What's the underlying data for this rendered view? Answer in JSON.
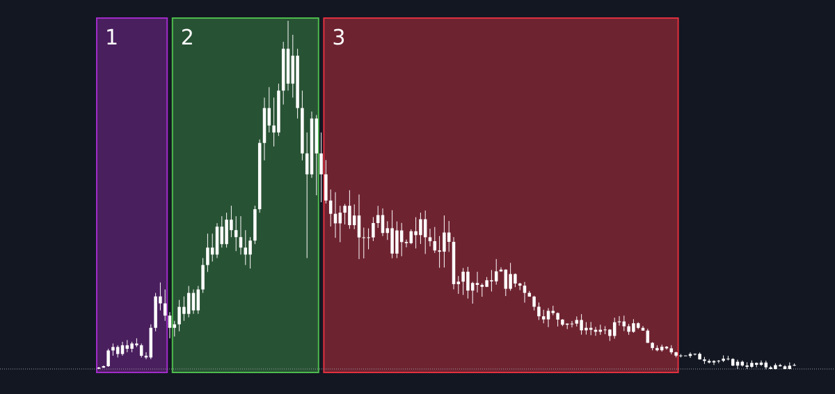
{
  "chart_data": {
    "type": "candlestick",
    "colors": {
      "background": "#131722",
      "candle": "#ffffff",
      "baseline": "#9aa0a6"
    },
    "zones": [
      {
        "label": "1",
        "x_range": [
          0,
          14
        ],
        "fill": "#4a1f5e",
        "stroke": "#a22bc9"
      },
      {
        "label": "2",
        "x_range": [
          16,
          46
        ],
        "fill": "#285234",
        "stroke": "#4dbb4d"
      },
      {
        "label": "3",
        "x_range": [
          48,
          122
        ],
        "fill": "#6e2331",
        "stroke": "#e0303f"
      }
    ],
    "ylim": [
      0,
      100
    ],
    "x_count": 148,
    "series": [
      {
        "values": [
          [
            0.3,
            0.8,
            0.2,
            0.6
          ],
          [
            0.6,
            1.2,
            0.5,
            1.0
          ],
          [
            1.0,
            6.0,
            0.8,
            5.5
          ],
          [
            5.5,
            7.5,
            4.0,
            6.5
          ],
          [
            6.5,
            7.0,
            3.5,
            4.5
          ],
          [
            4.5,
            8.0,
            4.0,
            7.0
          ],
          [
            7.0,
            8.5,
            5.0,
            6.0
          ],
          [
            6.0,
            8.0,
            5.0,
            7.5
          ],
          [
            7.5,
            9.0,
            6.5,
            7.0
          ],
          [
            7.0,
            7.5,
            3.5,
            4.0
          ],
          [
            4.0,
            5.0,
            3.0,
            3.5
          ],
          [
            3.5,
            13.0,
            3.0,
            12.0
          ],
          [
            12.0,
            22.0,
            11.0,
            21.0
          ],
          [
            21.0,
            25.0,
            17.0,
            19.0
          ],
          [
            19.0,
            23.0,
            14.0,
            15.5
          ],
          [
            15.5,
            16.5,
            9.0,
            12.0
          ],
          [
            12.0,
            14.0,
            9.5,
            13.0
          ],
          [
            13.0,
            20.0,
            11.0,
            18.0
          ],
          [
            18.0,
            21.0,
            14.0,
            16.0
          ],
          [
            16.0,
            24.0,
            15.0,
            22.0
          ],
          [
            22.0,
            23.0,
            16.0,
            17.0
          ],
          [
            17.0,
            24.0,
            16.0,
            23.0
          ],
          [
            23.0,
            32.0,
            22.0,
            30.0
          ],
          [
            30.0,
            39.0,
            28.0,
            35.0
          ],
          [
            35.0,
            39.0,
            31.0,
            33.0
          ],
          [
            33.0,
            42.0,
            32.0,
            41.0
          ],
          [
            41.0,
            44.0,
            35.0,
            36.0
          ],
          [
            36.0,
            45.0,
            35.0,
            43.0
          ],
          [
            43.0,
            47.0,
            38.0,
            40.0
          ],
          [
            40.0,
            44.0,
            34.0,
            38.0
          ],
          [
            38.0,
            44.0,
            33.0,
            35.0
          ],
          [
            35.0,
            40.0,
            30.0,
            33.0
          ],
          [
            33.0,
            38.0,
            29.0,
            37.0
          ],
          [
            37.0,
            47.0,
            36.0,
            46.0
          ],
          [
            46.0,
            66.0,
            45.0,
            65.0
          ],
          [
            65.0,
            78.0,
            60.0,
            75.0
          ],
          [
            75.0,
            81.0,
            68.0,
            70.0
          ],
          [
            70.0,
            78.0,
            64.0,
            68.0
          ],
          [
            68.0,
            82.0,
            67.0,
            80.0
          ],
          [
            80.0,
            94.0,
            76.0,
            92.0
          ],
          [
            92.0,
            100.0,
            80.0,
            82.0
          ],
          [
            82.0,
            96.0,
            78.0,
            90.0
          ],
          [
            90.0,
            92.0,
            72.0,
            75.0
          ],
          [
            75.0,
            80.0,
            60.0,
            62.0
          ],
          [
            62.0,
            68.0,
            32.0,
            56.0
          ],
          [
            56.0,
            74.0,
            55.0,
            72.0
          ],
          [
            72.0,
            73.0,
            50.0,
            62.0
          ],
          [
            62.0,
            68.0,
            48.0,
            56.0
          ]
        ]
      }
    ]
  }
}
